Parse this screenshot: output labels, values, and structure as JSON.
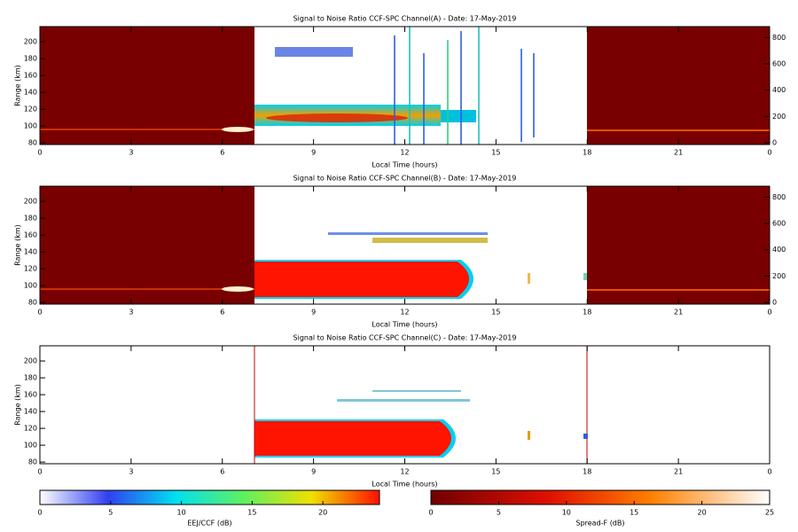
{
  "chart_data": [
    {
      "type": "heatmap",
      "title": "Signal to Noise Ratio CCF-SPC Channel(A) - Date: 17-May-2019",
      "xlabel": "Local Time (hours)",
      "ylabel": "Range (km)",
      "xlim": [
        0,
        24
      ],
      "xticks": [
        0,
        3,
        6,
        9,
        12,
        15,
        18,
        21,
        {
          "value": 24,
          "label": "0"
        }
      ],
      "ylim": [
        78,
        218
      ],
      "yticks": [
        80,
        100,
        120,
        140,
        160,
        180,
        200
      ],
      "y2lim": [
        -13,
        883
      ],
      "y2ticks": [
        0,
        200,
        400,
        600,
        800
      ]
    },
    {
      "type": "heatmap",
      "title": "Signal to Noise Ratio CCF-SPC Channel(B) - Date: 17-May-2019",
      "xlabel": "Local Time (hours)",
      "ylabel": "Range (km)",
      "xlim": [
        0,
        24
      ],
      "xticks": [
        0,
        3,
        6,
        9,
        12,
        15,
        18,
        21,
        {
          "value": 24,
          "label": "0"
        }
      ],
      "ylim": [
        78,
        218
      ],
      "yticks": [
        80,
        100,
        120,
        140,
        160,
        180,
        200
      ],
      "y2lim": [
        -13,
        883
      ],
      "y2ticks": [
        0,
        200,
        400,
        600,
        800
      ]
    },
    {
      "type": "heatmap",
      "title": "Signal to Noise Ratio CCF-SPC Channel(C) - Date: 17-May-2019",
      "xlabel": "Local Time (hours)",
      "ylabel": "Range (km)",
      "xlim": [
        0,
        24
      ],
      "xticks": [
        0,
        3,
        6,
        9,
        12,
        15,
        18,
        21,
        {
          "value": 24,
          "label": "0"
        }
      ],
      "ylim": [
        78,
        218
      ],
      "yticks": [
        80,
        100,
        120,
        140,
        160,
        180,
        200
      ]
    }
  ],
  "colorbars": [
    {
      "label": "EEJ/CCF (dB)",
      "lim": [
        0,
        24
      ],
      "ticks": [
        0,
        5,
        10,
        15,
        20
      ]
    },
    {
      "label": "Spread-F (dB)",
      "lim": [
        0,
        25
      ],
      "ticks": [
        0,
        5,
        10,
        15,
        20,
        25
      ]
    }
  ]
}
